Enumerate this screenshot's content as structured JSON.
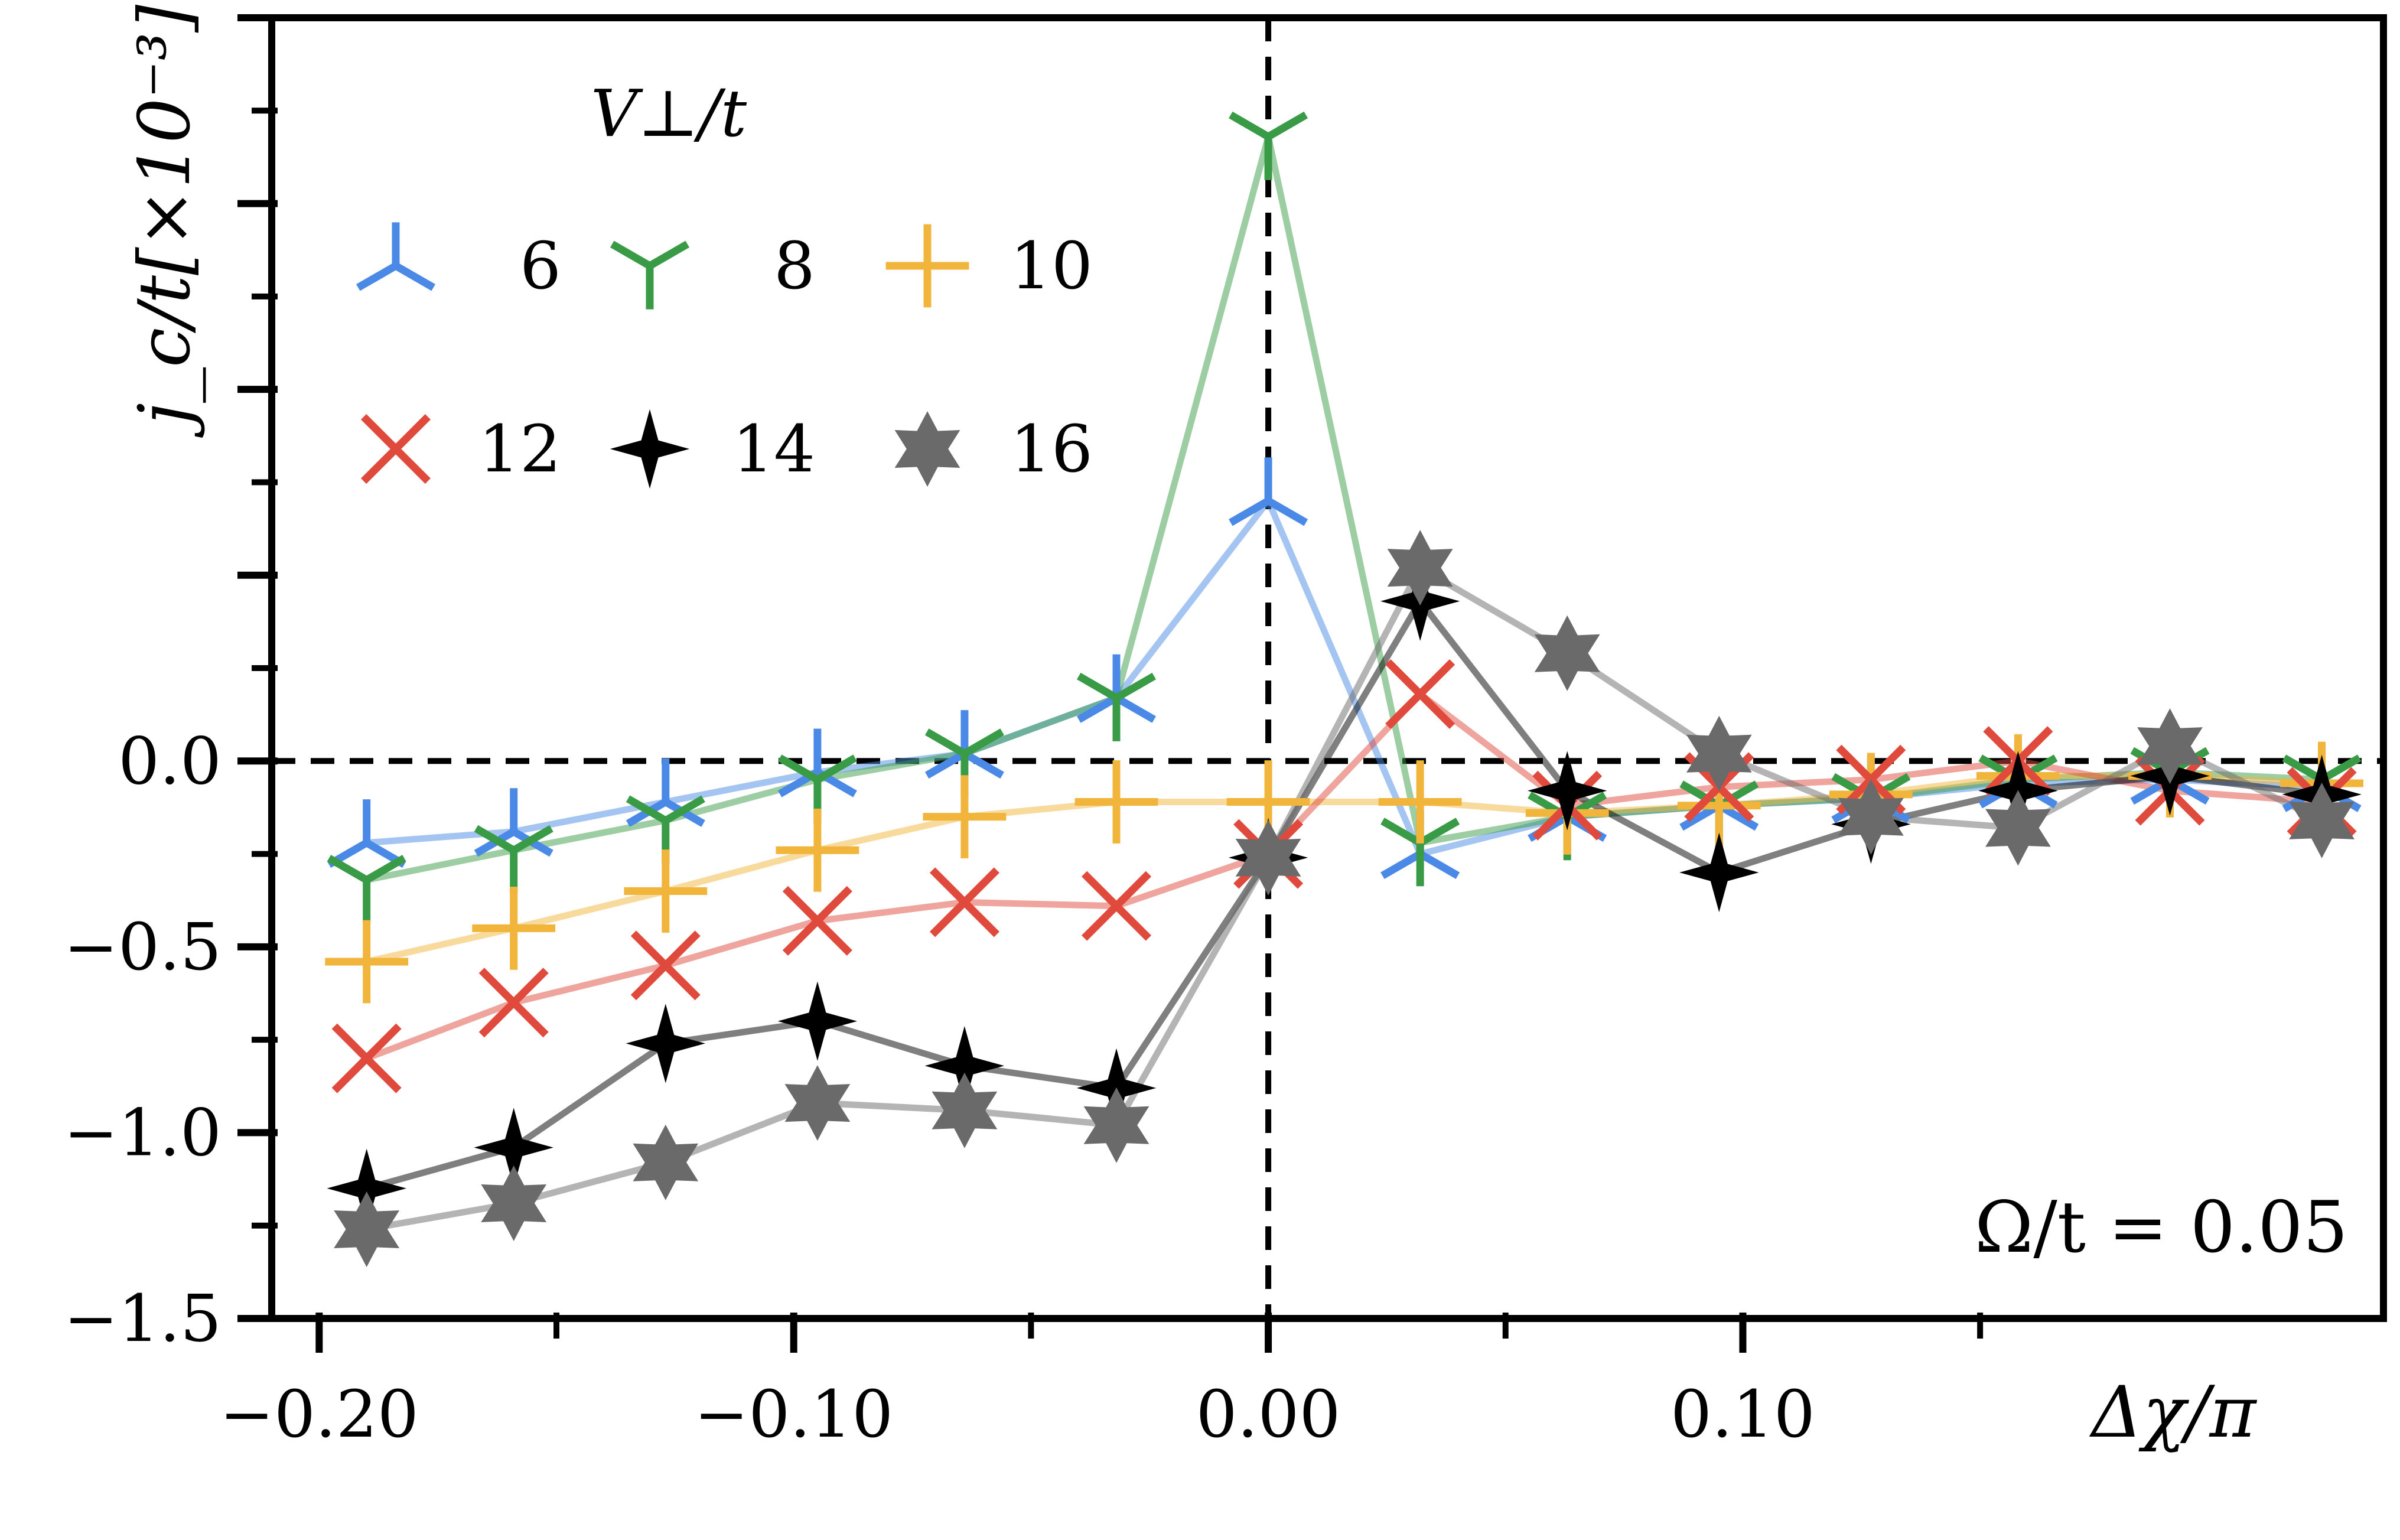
{
  "chart_data": {
    "type": "line",
    "xlabel": "Δχ/π",
    "ylabel": "j_c/t[×10⁻³]",
    "xlim": [
      -0.21,
      0.235
    ],
    "ylim": [
      -1.5,
      2.0
    ],
    "x_ticks": [
      -0.2,
      -0.1,
      0.0,
      0.1
    ],
    "x_tick_labels": [
      "−0.20",
      "−0.10",
      "0.00",
      "0.10"
    ],
    "y_ticks": [
      -1.5,
      -1.0,
      -0.5,
      0.0
    ],
    "y_tick_labels": [
      "−1.5",
      "−1.0",
      "−0.5",
      "0.0"
    ],
    "reference_lines": {
      "horizontal_y": 0.0,
      "vertical_x": 0.0,
      "style": "dashed"
    },
    "annotation": "Ω/t = 0.05",
    "legend": {
      "title": "V⊥/t",
      "placement": "top-left",
      "columns": 3
    },
    "grid": false,
    "x": [
      -0.19,
      -0.159,
      -0.127,
      -0.095,
      -0.064,
      -0.032,
      0.0,
      0.032,
      0.063,
      0.095,
      0.127,
      0.158,
      0.19,
      0.222
    ],
    "series": [
      {
        "name": "6",
        "marker": "tri-up",
        "color": "#4a8ae6",
        "values": [
          -0.22,
          -0.19,
          -0.11,
          -0.03,
          0.02,
          0.17,
          0.7,
          -0.25,
          -0.15,
          -0.12,
          -0.1,
          -0.06,
          -0.05,
          -0.07
        ]
      },
      {
        "name": "8",
        "marker": "tri-down",
        "color": "#3a9b47",
        "values": [
          -0.32,
          -0.24,
          -0.16,
          -0.05,
          0.02,
          0.17,
          1.68,
          -0.22,
          -0.15,
          -0.12,
          -0.1,
          -0.05,
          -0.03,
          -0.05
        ]
      },
      {
        "name": "10",
        "marker": "plus",
        "color": "#f0b53a",
        "values": [
          -0.54,
          -0.45,
          -0.35,
          -0.24,
          -0.15,
          -0.11,
          -0.11,
          -0.11,
          -0.14,
          -0.12,
          -0.09,
          -0.04,
          -0.04,
          -0.06
        ]
      },
      {
        "name": "12",
        "marker": "x",
        "color": "#e04a3c",
        "values": [
          -0.8,
          -0.65,
          -0.55,
          -0.43,
          -0.38,
          -0.39,
          -0.25,
          0.18,
          -0.12,
          -0.07,
          -0.05,
          0.0,
          -0.08,
          -0.11
        ]
      },
      {
        "name": "14",
        "marker": "star4",
        "color": "#000000",
        "values": [
          -1.15,
          -1.04,
          -0.76,
          -0.7,
          -0.82,
          -0.88,
          -0.26,
          0.43,
          -0.08,
          -0.3,
          -0.17,
          -0.08,
          -0.04,
          -0.09
        ]
      },
      {
        "name": "16",
        "marker": "star6",
        "color": "#6a6a6a",
        "values": [
          -1.26,
          -1.19,
          -1.08,
          -0.92,
          -0.94,
          -0.98,
          -0.26,
          0.52,
          0.29,
          0.02,
          -0.15,
          -0.18,
          0.04,
          -0.16
        ]
      }
    ]
  }
}
